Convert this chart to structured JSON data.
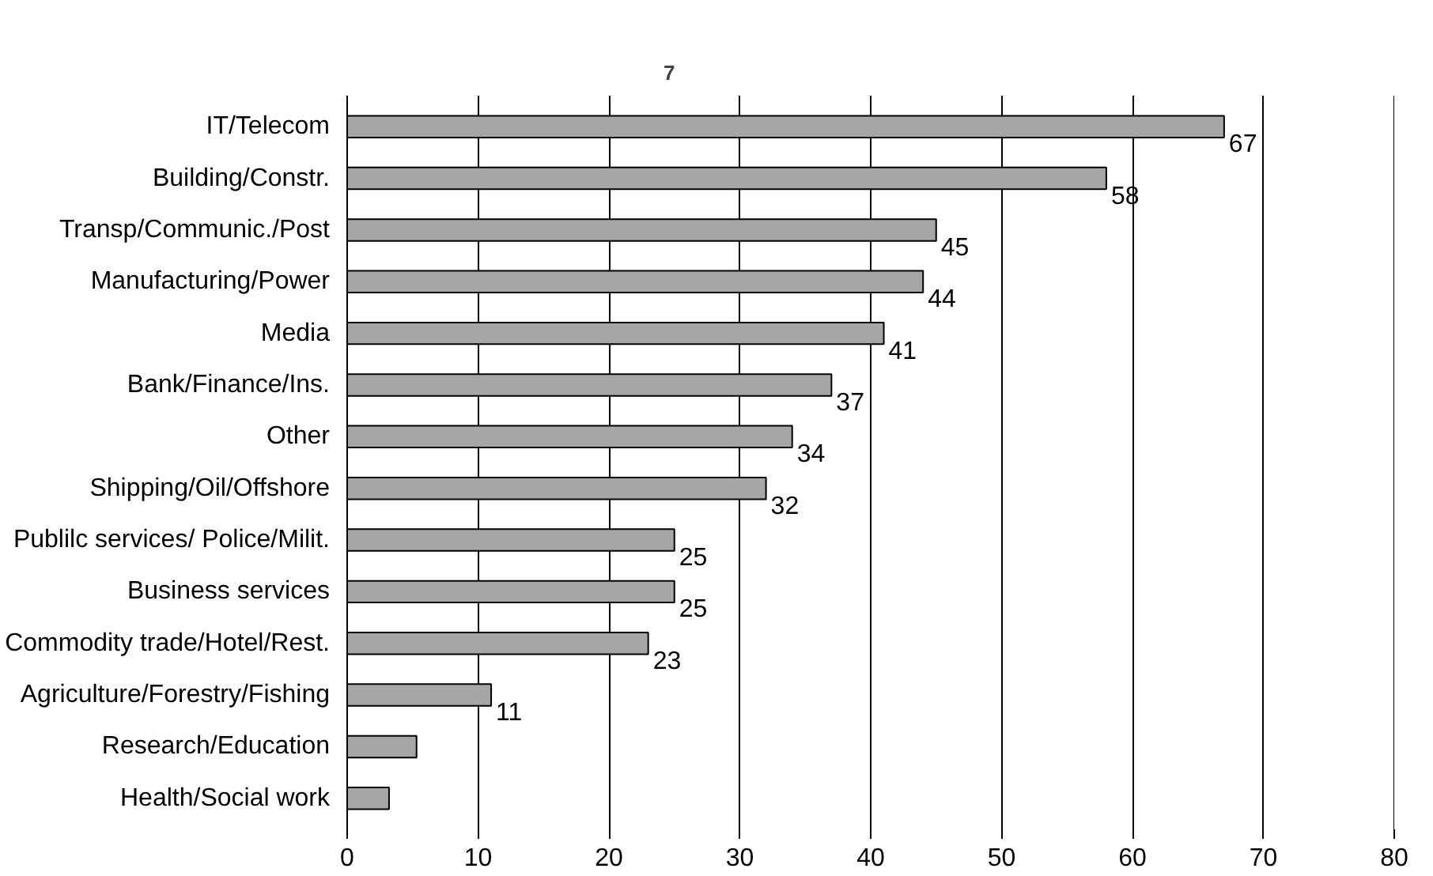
{
  "chart_data": {
    "type": "bar",
    "orientation": "horizontal",
    "categories": [
      "IT/Telecom",
      "Building/Constr.",
      "Transp/Communic./Post",
      "Manufacturing/Power",
      "Media",
      "Bank/Finance/Ins.",
      "Other",
      "Shipping/Oil/Offshore",
      "Publilc services/ Police/Milit.",
      "Business services",
      "Commodity trade/Hotel/Rest.",
      "Agriculture/Forestry/Fishing",
      "Research/Education",
      "Health/Social work"
    ],
    "values": [
      67,
      58,
      45,
      44,
      41,
      37,
      34,
      32,
      25,
      25,
      23,
      11,
      5.3,
      3.2
    ],
    "value_labels": [
      "67",
      "58",
      "45",
      "44",
      "41",
      "37",
      "34",
      "32",
      "25",
      "25",
      "23",
      "11",
      null,
      null
    ],
    "color": "#a6a6a6",
    "xlim": [
      0,
      80
    ],
    "xticks": [
      0,
      10,
      20,
      30,
      40,
      50,
      60,
      70,
      80
    ],
    "grid": "x",
    "annotations": [
      "7"
    ]
  }
}
